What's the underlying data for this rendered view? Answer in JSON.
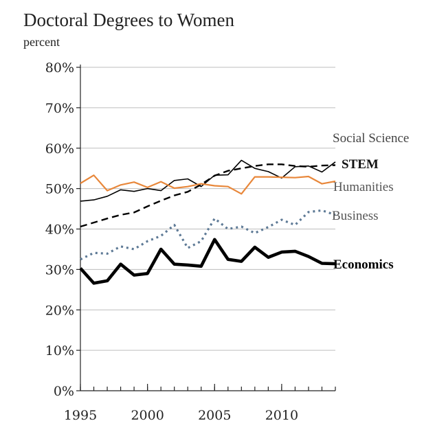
{
  "title": "Doctoral Degrees to Women",
  "subtitle": "percent",
  "chart_data": {
    "type": "line",
    "title": "Doctoral Degrees to Women",
    "ylabel": "percent",
    "xlim": [
      1995,
      2014
    ],
    "ylim": [
      0,
      80
    ],
    "grid": true,
    "x_ticks": [
      {
        "value": 1995,
        "label": "1995"
      },
      {
        "value": 2000,
        "label": "2000"
      },
      {
        "value": 2005,
        "label": "2005"
      },
      {
        "value": 2010,
        "label": "2010"
      }
    ],
    "y_ticks": [
      {
        "value": 0,
        "label": "0%"
      },
      {
        "value": 10,
        "label": "10%"
      },
      {
        "value": 20,
        "label": "20%"
      },
      {
        "value": 30,
        "label": "30%"
      },
      {
        "value": 40,
        "label": "40%"
      },
      {
        "value": 50,
        "label": "50%"
      },
      {
        "value": 60,
        "label": "60%"
      },
      {
        "value": 70,
        "label": "70%"
      },
      {
        "value": 80,
        "label": "80%"
      }
    ],
    "x": [
      1995,
      1996,
      1997,
      1998,
      1999,
      2000,
      2001,
      2002,
      2003,
      2004,
      2005,
      2006,
      2007,
      2008,
      2009,
      2010,
      2011,
      2012,
      2013,
      2014
    ],
    "series": [
      {
        "name": "Social Science",
        "color": "#000000",
        "style": "solid",
        "width": 1.6,
        "label_color": "#444444",
        "label_bold": false,
        "values": [
          46.9,
          47.2,
          48.1,
          49.7,
          49.3,
          50.0,
          49.5,
          52.0,
          52.4,
          50.5,
          53.3,
          53.4,
          57.0,
          55.0,
          54.2,
          52.6,
          55.4,
          55.6,
          54.1,
          56.6
        ]
      },
      {
        "name": "STEM",
        "color": "#000000",
        "style": "dashed",
        "width": 2.4,
        "label_color": "#111111",
        "label_bold": true,
        "values": [
          40.6,
          41.6,
          42.6,
          43.5,
          44.1,
          45.6,
          47.0,
          48.3,
          49.2,
          51.0,
          53.2,
          54.4,
          55.0,
          55.6,
          56.0,
          56.0,
          55.6,
          55.4,
          55.7,
          55.8
        ]
      },
      {
        "name": "Humanities",
        "color": "#e8873a",
        "style": "solid",
        "width": 2.2,
        "label_color": "#555555",
        "label_bold": false,
        "values": [
          51.3,
          53.3,
          49.5,
          50.9,
          51.6,
          50.3,
          51.7,
          50.1,
          50.5,
          51.2,
          50.7,
          50.5,
          48.7,
          52.9,
          52.9,
          52.8,
          52.7,
          53.0,
          51.2,
          51.8
        ]
      },
      {
        "name": "Business",
        "color": "#5e7a96",
        "style": "dotted",
        "width": 3.2,
        "label_color": "#555555",
        "label_bold": false,
        "values": [
          32.5,
          34.1,
          33.9,
          35.7,
          35.0,
          37.0,
          38.3,
          41.0,
          35.3,
          37.0,
          42.6,
          40.0,
          40.6,
          39.0,
          40.5,
          42.3,
          41.0,
          44.2,
          44.6,
          43.5
        ]
      },
      {
        "name": "Economics",
        "color": "#000000",
        "style": "solid",
        "width": 4.6,
        "label_color": "#000000",
        "label_bold": true,
        "values": [
          30.3,
          26.6,
          27.2,
          31.3,
          28.6,
          29.0,
          35.0,
          31.3,
          31.1,
          30.8,
          37.4,
          32.5,
          32.0,
          35.5,
          33.0,
          34.3,
          34.5,
          33.2,
          31.5,
          31.4
        ]
      }
    ]
  }
}
